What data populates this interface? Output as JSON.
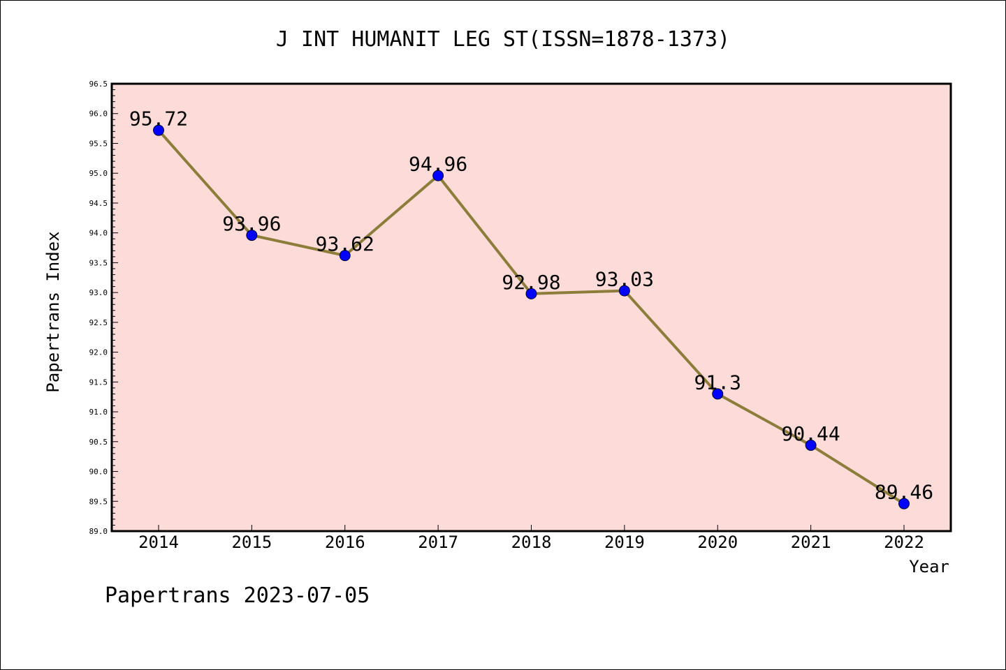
{
  "chart_data": {
    "type": "line",
    "title": "J INT HUMANIT LEG ST(ISSN=1878-1373)",
    "xlabel": "Year",
    "ylabel": "Papertrans Index",
    "categories": [
      "2014",
      "2015",
      "2016",
      "2017",
      "2018",
      "2019",
      "2020",
      "2021",
      "2022"
    ],
    "series": [
      {
        "values": [
          95.72,
          93.96,
          93.62,
          94.96,
          92.98,
          93.03,
          91.3,
          90.44,
          89.46
        ],
        "labels": [
          "95.72",
          "93.96",
          "93.62",
          "94.96",
          "92.98",
          "93.03",
          "91.3",
          "90.44",
          "89.46"
        ]
      }
    ],
    "ylim": [
      89.0,
      96.5
    ],
    "yticks": [
      "89.0",
      "89.5",
      "90.0",
      "90.5",
      "91.0",
      "91.5",
      "92.0",
      "92.5",
      "93.0",
      "93.5",
      "94.0",
      "94.5",
      "95.0",
      "95.5",
      "96.0",
      "96.5"
    ],
    "grid": false,
    "legend": "none",
    "colors": {
      "plot_background": "#fddbd9",
      "line": "#8c7d3a",
      "marker": "#0000ff",
      "axis": "#000000"
    }
  },
  "footer": {
    "watermark": "Papertrans 2023-07-05"
  }
}
